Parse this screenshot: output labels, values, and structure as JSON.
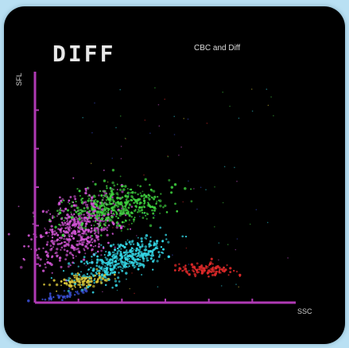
{
  "title": "DIFF",
  "subtitle": "CBC and Diff",
  "colors": {
    "background": "#b9e0f3",
    "panel": "#000000",
    "axis": "#b03ab4"
  },
  "chart_data": {
    "type": "scatter",
    "xlabel": "SSC",
    "ylabel": "SFL",
    "xlim": [
      0,
      6
    ],
    "ylim": [
      0,
      6
    ],
    "grid": false,
    "legend": "none",
    "series": [
      {
        "color": "#d356d6",
        "center": [
          1.0,
          1.95
        ],
        "spread": [
          0.35,
          0.55
        ],
        "tilt": -55,
        "count": 520
      },
      {
        "color": "#3fd23f",
        "center": [
          1.85,
          2.5
        ],
        "spread": [
          0.22,
          0.6
        ],
        "tilt": -80,
        "count": 420
      },
      {
        "color": "#34d7e6",
        "center": [
          2.0,
          1.1
        ],
        "spread": [
          0.55,
          0.18
        ],
        "tilt": 22,
        "count": 440
      },
      {
        "color": "#d8c53a",
        "center": [
          1.1,
          0.55
        ],
        "spread": [
          0.3,
          0.07
        ],
        "tilt": 8,
        "count": 110
      },
      {
        "color": "#e22a2a",
        "center": [
          3.95,
          0.85
        ],
        "spread": [
          0.32,
          0.07
        ],
        "tilt": 0,
        "count": 120
      },
      {
        "color": "#3a4fd6",
        "center": [
          0.7,
          0.2
        ],
        "spread": [
          0.28,
          0.05
        ],
        "tilt": 10,
        "count": 45
      }
    ]
  }
}
